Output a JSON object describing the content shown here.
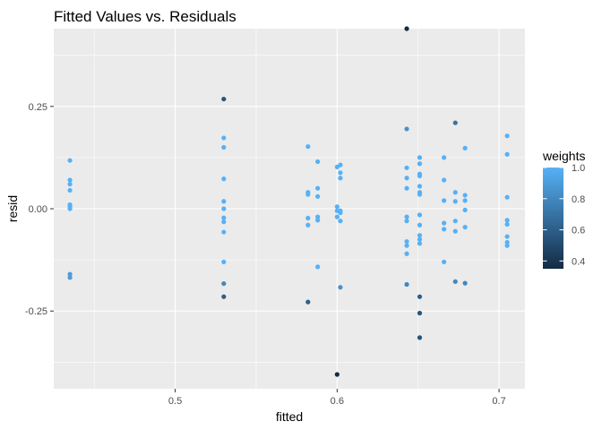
{
  "chart_data": {
    "type": "scatter",
    "title": "Fitted Values vs. Residuals",
    "xlabel": "fitted",
    "ylabel": "resid",
    "xlim": [
      0.425,
      0.716
    ],
    "ylim": [
      -0.44,
      0.44
    ],
    "x_ticks": [
      {
        "value": 0.5,
        "label": "0.5"
      },
      {
        "value": 0.6,
        "label": "0.6"
      },
      {
        "value": 0.7,
        "label": "0.7"
      }
    ],
    "y_ticks": [
      {
        "value": -0.25,
        "label": "-0.25"
      },
      {
        "value": 0.0,
        "label": "0.00"
      },
      {
        "value": 0.25,
        "label": "0.25"
      }
    ],
    "x_minor_ticks": [
      0.45,
      0.55,
      0.65
    ],
    "y_minor_ticks": [
      -0.375,
      -0.125,
      0.125,
      0.375
    ],
    "grid": true,
    "background_color": "#ebebeb",
    "legend": {
      "title": "weights",
      "position": "right",
      "low_color": "#132b43",
      "high_color": "#56b1f7",
      "range": [
        0.35,
        1.0
      ],
      "ticks": [
        {
          "value": 0.4,
          "label": "0.4"
        },
        {
          "value": 0.6,
          "label": "0.6"
        },
        {
          "value": 0.8,
          "label": "0.8"
        },
        {
          "value": 1.0,
          "label": "1.0"
        }
      ]
    },
    "points": [
      {
        "x": 0.435,
        "y": 0.118,
        "w": 1.0
      },
      {
        "x": 0.435,
        "y": 0.07,
        "w": 1.0
      },
      {
        "x": 0.435,
        "y": 0.06,
        "w": 1.0
      },
      {
        "x": 0.435,
        "y": 0.045,
        "w": 1.0
      },
      {
        "x": 0.435,
        "y": 0.01,
        "w": 1.0
      },
      {
        "x": 0.435,
        "y": 0.005,
        "w": 1.0
      },
      {
        "x": 0.435,
        "y": 0.0,
        "w": 1.0
      },
      {
        "x": 0.435,
        "y": -0.16,
        "w": 0.9
      },
      {
        "x": 0.435,
        "y": -0.168,
        "w": 0.9
      },
      {
        "x": 0.53,
        "y": 0.268,
        "w": 0.55
      },
      {
        "x": 0.53,
        "y": 0.173,
        "w": 1.0
      },
      {
        "x": 0.53,
        "y": 0.15,
        "w": 1.0
      },
      {
        "x": 0.53,
        "y": 0.073,
        "w": 1.0
      },
      {
        "x": 0.53,
        "y": 0.018,
        "w": 1.0
      },
      {
        "x": 0.53,
        "y": 0.0,
        "w": 1.0
      },
      {
        "x": 0.53,
        "y": -0.022,
        "w": 1.0
      },
      {
        "x": 0.53,
        "y": -0.032,
        "w": 1.0
      },
      {
        "x": 0.53,
        "y": -0.057,
        "w": 1.0
      },
      {
        "x": 0.53,
        "y": -0.13,
        "w": 1.0
      },
      {
        "x": 0.53,
        "y": -0.183,
        "w": 0.8
      },
      {
        "x": 0.53,
        "y": -0.215,
        "w": 0.6
      },
      {
        "x": 0.582,
        "y": 0.152,
        "w": 1.0
      },
      {
        "x": 0.582,
        "y": 0.04,
        "w": 1.0
      },
      {
        "x": 0.582,
        "y": 0.035,
        "w": 1.0
      },
      {
        "x": 0.582,
        "y": -0.023,
        "w": 1.0
      },
      {
        "x": 0.582,
        "y": -0.04,
        "w": 1.0
      },
      {
        "x": 0.582,
        "y": -0.228,
        "w": 0.6
      },
      {
        "x": 0.588,
        "y": 0.115,
        "w": 1.0
      },
      {
        "x": 0.588,
        "y": 0.05,
        "w": 1.0
      },
      {
        "x": 0.588,
        "y": 0.03,
        "w": 1.0
      },
      {
        "x": 0.588,
        "y": -0.02,
        "w": 1.0
      },
      {
        "x": 0.588,
        "y": -0.028,
        "w": 1.0
      },
      {
        "x": 0.588,
        "y": -0.142,
        "w": 1.0
      },
      {
        "x": 0.6,
        "y": 0.102,
        "w": 1.0
      },
      {
        "x": 0.6,
        "y": 0.005,
        "w": 1.0
      },
      {
        "x": 0.6,
        "y": -0.005,
        "w": 1.0
      },
      {
        "x": 0.6,
        "y": -0.02,
        "w": 1.0
      },
      {
        "x": 0.6,
        "y": -0.405,
        "w": 0.35
      },
      {
        "x": 0.602,
        "y": 0.107,
        "w": 1.0
      },
      {
        "x": 0.602,
        "y": 0.088,
        "w": 1.0
      },
      {
        "x": 0.602,
        "y": 0.075,
        "w": 1.0
      },
      {
        "x": 0.602,
        "y": -0.005,
        "w": 1.0
      },
      {
        "x": 0.602,
        "y": -0.01,
        "w": 1.0
      },
      {
        "x": 0.602,
        "y": -0.03,
        "w": 1.0
      },
      {
        "x": 0.602,
        "y": -0.192,
        "w": 0.85
      },
      {
        "x": 0.643,
        "y": 0.44,
        "w": 0.35
      },
      {
        "x": 0.643,
        "y": 0.195,
        "w": 0.85
      },
      {
        "x": 0.643,
        "y": 0.1,
        "w": 1.0
      },
      {
        "x": 0.643,
        "y": 0.075,
        "w": 1.0
      },
      {
        "x": 0.643,
        "y": 0.05,
        "w": 1.0
      },
      {
        "x": 0.643,
        "y": -0.02,
        "w": 1.0
      },
      {
        "x": 0.643,
        "y": -0.03,
        "w": 1.0
      },
      {
        "x": 0.643,
        "y": -0.08,
        "w": 1.0
      },
      {
        "x": 0.643,
        "y": -0.09,
        "w": 1.0
      },
      {
        "x": 0.643,
        "y": -0.11,
        "w": 1.0
      },
      {
        "x": 0.643,
        "y": -0.185,
        "w": 0.8
      },
      {
        "x": 0.651,
        "y": 0.125,
        "w": 1.0
      },
      {
        "x": 0.651,
        "y": 0.11,
        "w": 1.0
      },
      {
        "x": 0.651,
        "y": 0.085,
        "w": 1.0
      },
      {
        "x": 0.651,
        "y": 0.08,
        "w": 1.0
      },
      {
        "x": 0.651,
        "y": 0.055,
        "w": 1.0
      },
      {
        "x": 0.651,
        "y": 0.04,
        "w": 1.0
      },
      {
        "x": 0.651,
        "y": 0.035,
        "w": 1.0
      },
      {
        "x": 0.651,
        "y": -0.015,
        "w": 1.0
      },
      {
        "x": 0.651,
        "y": -0.04,
        "w": 1.0
      },
      {
        "x": 0.651,
        "y": -0.065,
        "w": 1.0
      },
      {
        "x": 0.651,
        "y": -0.075,
        "w": 1.0
      },
      {
        "x": 0.651,
        "y": -0.085,
        "w": 1.0
      },
      {
        "x": 0.651,
        "y": -0.215,
        "w": 0.6
      },
      {
        "x": 0.651,
        "y": -0.255,
        "w": 0.55
      },
      {
        "x": 0.651,
        "y": -0.315,
        "w": 0.55
      },
      {
        "x": 0.666,
        "y": 0.125,
        "w": 1.0
      },
      {
        "x": 0.666,
        "y": 0.07,
        "w": 1.0
      },
      {
        "x": 0.666,
        "y": 0.02,
        "w": 1.0
      },
      {
        "x": 0.666,
        "y": -0.035,
        "w": 1.0
      },
      {
        "x": 0.666,
        "y": -0.05,
        "w": 1.0
      },
      {
        "x": 0.666,
        "y": -0.13,
        "w": 1.0
      },
      {
        "x": 0.673,
        "y": 0.21,
        "w": 0.7
      },
      {
        "x": 0.673,
        "y": 0.04,
        "w": 1.0
      },
      {
        "x": 0.673,
        "y": 0.018,
        "w": 1.0
      },
      {
        "x": 0.673,
        "y": -0.03,
        "w": 1.0
      },
      {
        "x": 0.673,
        "y": -0.055,
        "w": 1.0
      },
      {
        "x": 0.673,
        "y": -0.178,
        "w": 0.8
      },
      {
        "x": 0.679,
        "y": 0.148,
        "w": 1.0
      },
      {
        "x": 0.679,
        "y": 0.033,
        "w": 1.0
      },
      {
        "x": 0.679,
        "y": 0.02,
        "w": 1.0
      },
      {
        "x": 0.679,
        "y": -0.003,
        "w": 1.0
      },
      {
        "x": 0.679,
        "y": -0.045,
        "w": 1.0
      },
      {
        "x": 0.679,
        "y": -0.182,
        "w": 0.8
      },
      {
        "x": 0.705,
        "y": 0.178,
        "w": 1.0
      },
      {
        "x": 0.705,
        "y": 0.133,
        "w": 1.0
      },
      {
        "x": 0.705,
        "y": 0.028,
        "w": 1.0
      },
      {
        "x": 0.705,
        "y": -0.028,
        "w": 1.0
      },
      {
        "x": 0.705,
        "y": -0.038,
        "w": 1.0
      },
      {
        "x": 0.705,
        "y": -0.068,
        "w": 1.0
      },
      {
        "x": 0.705,
        "y": -0.082,
        "w": 1.0
      },
      {
        "x": 0.705,
        "y": -0.09,
        "w": 1.0
      }
    ]
  }
}
